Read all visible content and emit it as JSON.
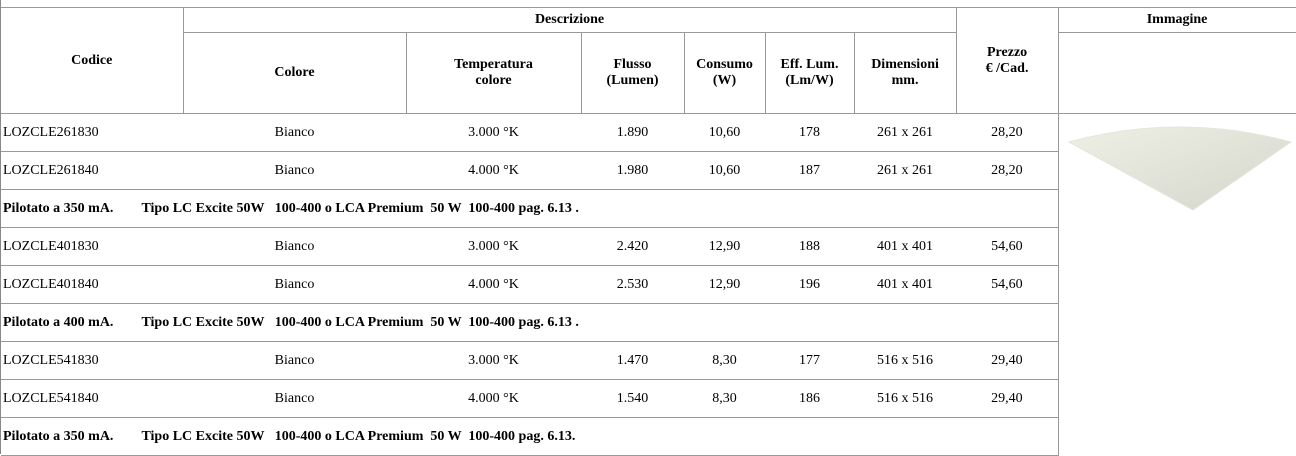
{
  "table": {
    "headers": {
      "codice": "Codice",
      "descrizione": "Descrizione",
      "immagine": "Immagine",
      "columns": [
        "Colore",
        "Temperatura\ncolore",
        "Flusso\n(Lumen)",
        "Consumo\n(W)",
        "Eff. Lum.\n(Lm/W)",
        "Dimensioni\nmm."
      ],
      "prezzo": "Prezzo\n€ /Cad."
    },
    "rows": [
      [
        "LOZCLE261830",
        "Bianco",
        "3.000 °K",
        "1.890",
        "10,60",
        "178",
        "261 x 261",
        "28,20"
      ],
      [
        "LOZCLE261840",
        "Bianco",
        "4.000 °K",
        "1.980",
        "10,60",
        "187",
        "261 x 261",
        "28,20"
      ],
      {
        "note": [
          "Pilotato a 350 mA.",
          "Tipo LC Excite 50W   100-400 o LCA Premium  50 W  100-400 pag. 6.13 ."
        ]
      },
      [
        "LOZCLE401830",
        "Bianco",
        "3.000 °K",
        "2.420",
        "12,90",
        "188",
        "401 x 401",
        "54,60"
      ],
      [
        "LOZCLE401840",
        "Bianco",
        "4.000 °K",
        "2.530",
        "12,90",
        "196",
        "401 x 401",
        "54,60"
      ],
      {
        "note": [
          "Pilotato a 400 mA.",
          "Tipo LC Excite 50W   100-400 o LCA Premium  50 W  100-400 pag. 6.13 ."
        ]
      },
      [
        "LOZCLE541830",
        "Bianco",
        "3.000 °K",
        "1.470",
        "8,30",
        "177",
        "516 x 516",
        "29,40"
      ],
      [
        "LOZCLE541840",
        "Bianco",
        "4.000 °K",
        "1.540",
        "8,30",
        "186",
        "516 x 516",
        "29,40"
      ],
      {
        "note": [
          "Pilotato a 350 mA.",
          "Tipo LC Excite 50W   100-400 o LCA Premium  50 W  100-400 pag. 6.13."
        ]
      }
    ]
  }
}
